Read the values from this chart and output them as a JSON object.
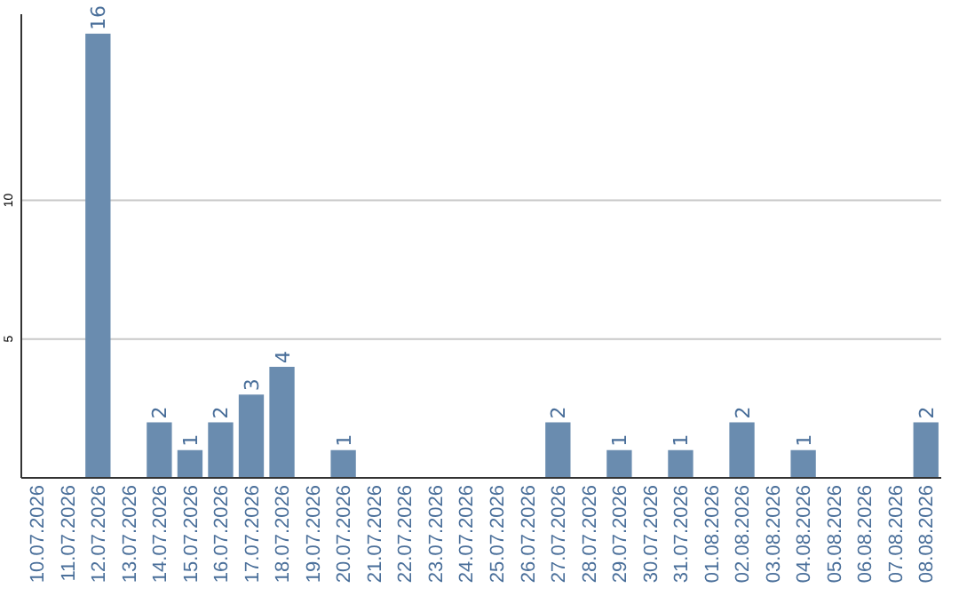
{
  "chart_data": {
    "type": "bar",
    "categories": [
      "10.07.2026",
      "11.07.2026",
      "12.07.2026",
      "13.07.2026",
      "14.07.2026",
      "15.07.2026",
      "16.07.2026",
      "17.07.2026",
      "18.07.2026",
      "19.07.2026",
      "20.07.2026",
      "21.07.2026",
      "22.07.2026",
      "23.07.2026",
      "24.07.2026",
      "25.07.2026",
      "26.07.2026",
      "27.07.2026",
      "28.07.2026",
      "29.07.2026",
      "30.07.2026",
      "31.07.2026",
      "01.08.2026",
      "02.08.2026",
      "03.08.2026",
      "04.08.2026",
      "05.08.2026",
      "06.08.2026",
      "07.08.2026",
      "08.08.2026"
    ],
    "values": [
      0,
      0,
      16,
      0,
      2,
      1,
      2,
      3,
      4,
      0,
      1,
      0,
      0,
      0,
      0,
      0,
      0,
      2,
      0,
      1,
      0,
      1,
      0,
      2,
      0,
      1,
      0,
      0,
      0,
      2
    ],
    "value_labels": [
      null,
      null,
      "16",
      null,
      "2",
      "1",
      "2",
      "3",
      "4",
      null,
      "1",
      null,
      null,
      null,
      null,
      null,
      null,
      "2",
      null,
      "1",
      null,
      "1",
      null,
      "2",
      null,
      "1",
      null,
      null,
      null,
      "2"
    ],
    "color": "#6a8caf",
    "ylim": [
      0,
      16.7
    ],
    "yticks": [
      5,
      10
    ],
    "grid": "y"
  }
}
